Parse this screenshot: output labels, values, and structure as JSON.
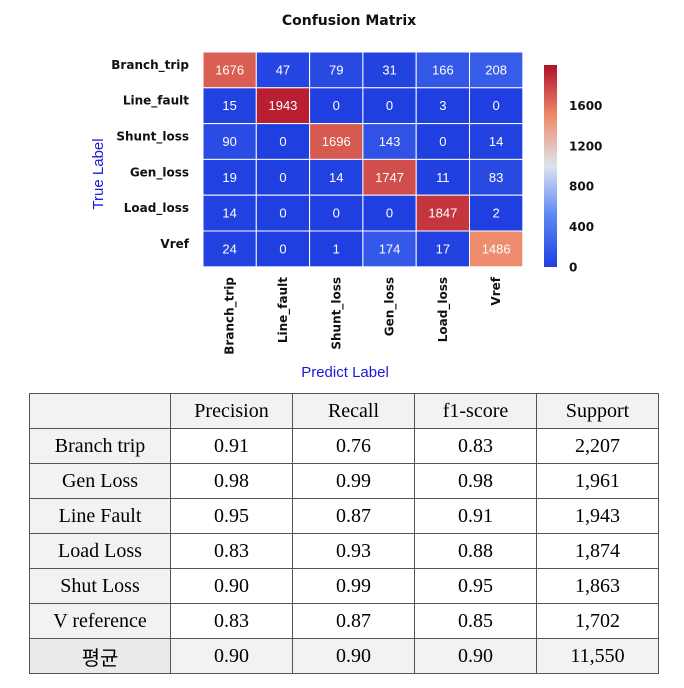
{
  "chart_data": {
    "type": "heatmap",
    "title": "Confusion Matrix",
    "xlabel": "Predict Label",
    "ylabel": "True Label",
    "row_labels": [
      "Branch_trip",
      "Line_fault",
      "Shunt_loss",
      "Gen_loss",
      "Load_loss",
      "Vref"
    ],
    "col_labels": [
      "Branch_trip",
      "Line_fault",
      "Shunt_loss",
      "Gen_loss",
      "Load_loss",
      "Vref"
    ],
    "values": [
      [
        1676,
        47,
        79,
        31,
        166,
        208
      ],
      [
        15,
        1943,
        0,
        0,
        3,
        0
      ],
      [
        90,
        0,
        1696,
        143,
        0,
        14
      ],
      [
        19,
        0,
        14,
        1747,
        11,
        83
      ],
      [
        14,
        0,
        0,
        0,
        1847,
        2
      ],
      [
        24,
        0,
        1,
        174,
        17,
        1486
      ]
    ],
    "colorbar": {
      "min": 0,
      "max": 2000,
      "ticks": [
        0,
        400,
        800,
        1200,
        1600
      ],
      "colormap": "coolwarm",
      "low_color": "#1f3fe0",
      "mid_color": "#dde3ee",
      "high_color": "#b2102b"
    }
  },
  "metrics_table": {
    "headers": [
      "",
      "Precision",
      "Recall",
      "f1-score",
      "Support"
    ],
    "rows": [
      [
        "Branch  trip",
        "0.91",
        "0.76",
        "0.83",
        "2,207"
      ],
      [
        "Gen  Loss",
        "0.98",
        "0.99",
        "0.98",
        "1,961"
      ],
      [
        "Line  Fault",
        "0.95",
        "0.87",
        "0.91",
        "1,943"
      ],
      [
        "Load  Loss",
        "0.83",
        "0.93",
        "0.88",
        "1,874"
      ],
      [
        "Shut  Loss",
        "0.90",
        "0.99",
        "0.95",
        "1,863"
      ],
      [
        "V  reference",
        "0.83",
        "0.87",
        "0.85",
        "1,702"
      ],
      [
        "평균",
        "0.90",
        "0.90",
        "0.90",
        "11,550"
      ]
    ]
  }
}
